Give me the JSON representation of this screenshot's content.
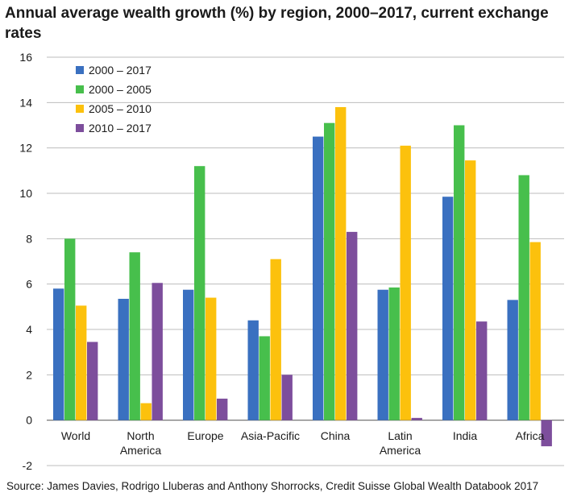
{
  "title": "Annual average wealth growth (%) by region, 2000–2017, current exchange rates",
  "source": "Source: James Davies, Rodrigo Lluberas and Anthony Shorrocks, Credit Suisse Global Wealth Databook 2017",
  "colors": {
    "s2000_2017": "#3a70c0",
    "s2000_2005": "#47bf4c",
    "s2005_2010": "#fcc10d",
    "s2010_2017": "#7d4e9c"
  },
  "chart_data": {
    "type": "bar",
    "title": "Annual average wealth growth (%) by region, 2000–2017, current exchange rates",
    "xlabel": "",
    "ylabel": "",
    "ylim": [
      -2,
      16
    ],
    "yticks": [
      -2,
      0,
      2,
      4,
      6,
      8,
      10,
      12,
      14,
      16
    ],
    "grid": true,
    "legend": "top-left",
    "categories": [
      [
        "World"
      ],
      [
        "North",
        "America"
      ],
      [
        "Europe"
      ],
      [
        "Asia-Pacific"
      ],
      [
        "China"
      ],
      [
        "Latin",
        "America"
      ],
      [
        "India"
      ],
      [
        "Africa"
      ]
    ],
    "series": [
      {
        "name": "2000 – 2017",
        "color": "#3a70c0",
        "values": [
          5.8,
          5.35,
          5.75,
          4.4,
          12.5,
          5.75,
          9.85,
          5.3
        ]
      },
      {
        "name": "2000 – 2005",
        "color": "#47bf4c",
        "values": [
          8.0,
          7.4,
          11.2,
          3.7,
          13.1,
          5.85,
          13.0,
          10.8
        ]
      },
      {
        "name": "2005 – 2010",
        "color": "#fcc10d",
        "values": [
          5.05,
          0.75,
          5.4,
          7.1,
          13.8,
          12.1,
          11.45,
          7.85
        ]
      },
      {
        "name": "2010 – 2017",
        "color": "#7d4e9c",
        "values": [
          3.45,
          6.05,
          0.95,
          2.0,
          8.3,
          0.1,
          4.35,
          -1.15
        ]
      }
    ]
  }
}
